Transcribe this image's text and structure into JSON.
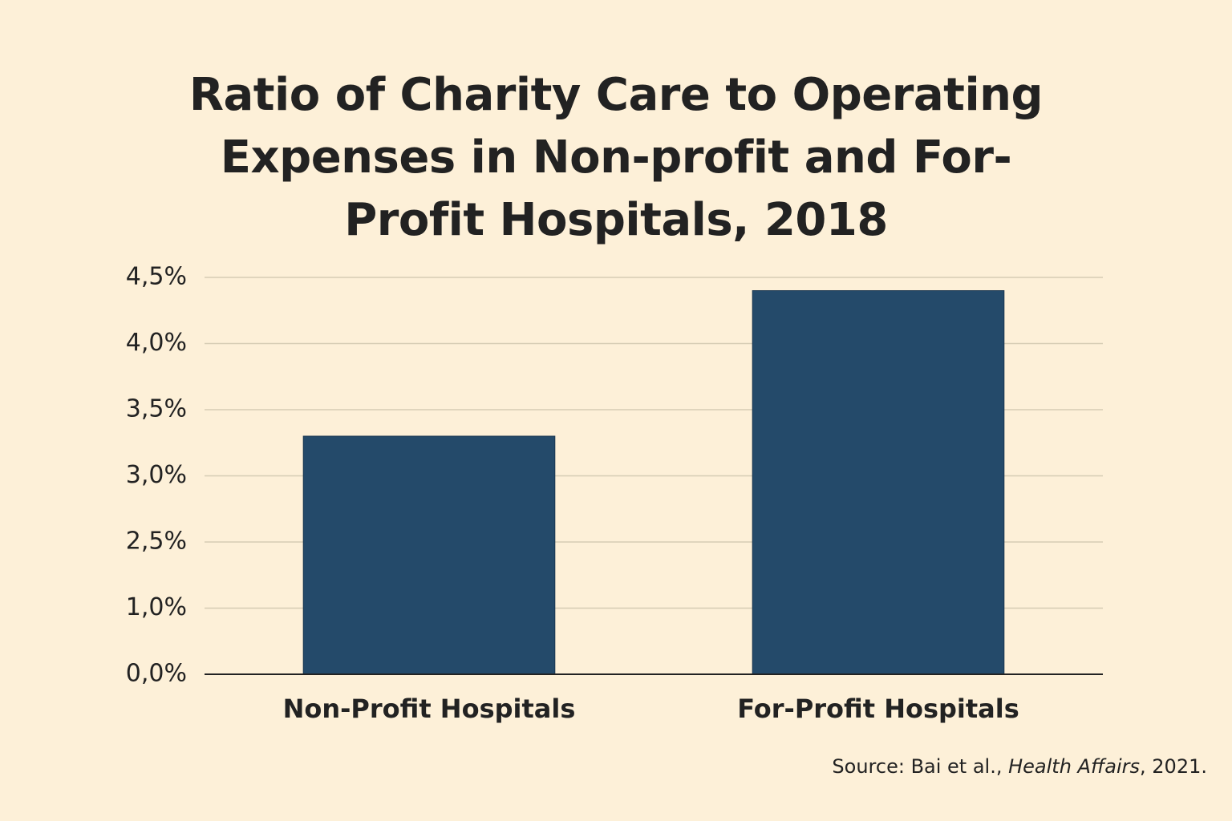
{
  "chart_data": {
    "type": "bar",
    "title": "Ratio of Charity Care to Operating Expenses in Non-profit and For-Profit Hospitals, 2018",
    "categories": [
      "Non-Profit Hospitals",
      "For-Profit Hospitals"
    ],
    "values": [
      3.3,
      4.4
    ],
    "color": "#244a6a",
    "ylim": [
      0,
      4.5
    ],
    "yticks": [
      {
        "value": 0,
        "label": "0,0%"
      },
      {
        "value": 1,
        "label": "1,0%"
      },
      {
        "value": 2.5,
        "label": "2,5%"
      },
      {
        "value": 3,
        "label": "3,0%"
      },
      {
        "value": 3.5,
        "label": "3,5%"
      },
      {
        "value": 4,
        "label": "4,0%"
      },
      {
        "value": 4.5,
        "label": "4,5%"
      }
    ],
    "grid": true,
    "source": {
      "prefix": "Source: Bai et al., ",
      "journal": "Health Affairs",
      "suffix": ", 2021."
    }
  }
}
